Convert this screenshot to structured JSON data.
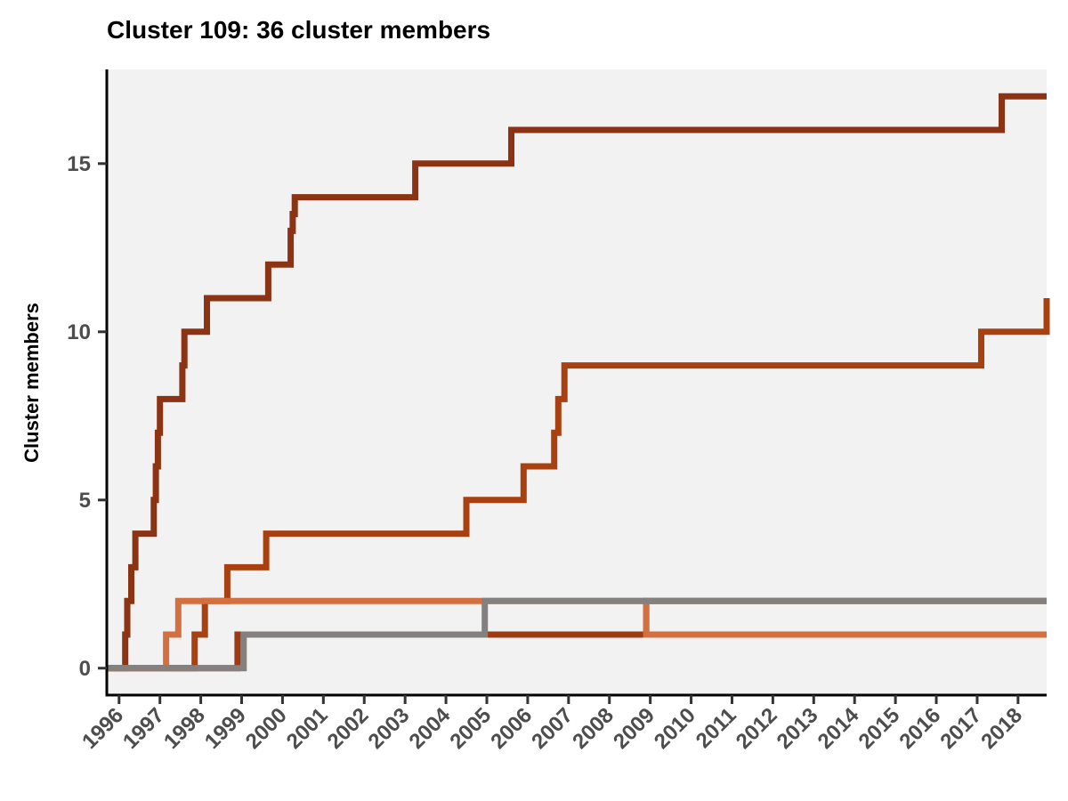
{
  "chart_data": {
    "type": "line",
    "title": "Cluster 109: 36 cluster members",
    "xlabel": "",
    "ylabel": "Cluster members",
    "xlim": [
      1995.7,
      2018.7
    ],
    "ylim": [
      -0.8,
      17.8
    ],
    "x_ticks": [
      "1996",
      "1997",
      "1998",
      "1999",
      "2000",
      "2001",
      "2002",
      "2003",
      "2004",
      "2005",
      "2006",
      "2007",
      "2008",
      "2009",
      "2010",
      "2011",
      "2012",
      "2013",
      "2014",
      "2015",
      "2016",
      "2017",
      "2018"
    ],
    "y_ticks": [
      0,
      5,
      10,
      15
    ],
    "grid": false,
    "legend": "none",
    "step": true,
    "series": [
      {
        "color": "#8b3312",
        "x": [
          1995.7,
          1996.15,
          1996.2,
          1996.3,
          1996.4,
          1996.85,
          1996.9,
          1996.95,
          1997.0,
          1997.55,
          1997.6,
          1998.15,
          1999.65,
          2000.2,
          2000.25,
          2000.3,
          2003.25,
          2005.6,
          2017.6,
          2018.7
        ],
        "y": [
          0,
          1,
          2,
          3,
          4,
          5,
          6,
          7,
          8,
          9,
          10,
          11,
          12,
          13,
          13.5,
          14,
          15,
          16,
          17,
          17
        ]
      },
      {
        "color": "#a84010",
        "x": [
          1995.7,
          1997.6,
          1997.85,
          1998.1,
          1998.65,
          1999.6,
          2004.5,
          2005.9,
          2006.65,
          2006.75,
          2006.9,
          2017.1,
          2018.7
        ],
        "y": [
          0,
          0,
          1,
          2,
          3,
          4,
          5,
          6,
          7,
          8,
          9,
          10,
          11
        ]
      },
      {
        "color": "#9e3a12",
        "x": [
          1995.7,
          1998.4,
          1998.9,
          2005.0,
          2005.4,
          2008.9,
          2018.7
        ],
        "y": [
          0,
          0,
          1,
          1,
          1,
          2,
          2
        ]
      },
      {
        "color": "#d47040",
        "x": [
          1995.7,
          1997.15,
          1997.45,
          2005.0,
          2005.3,
          2008.9,
          2018.7
        ],
        "y": [
          0,
          1,
          2,
          2,
          2,
          1,
          1
        ]
      },
      {
        "color": "#858080",
        "x": [
          1995.7,
          1999.05,
          2004.95,
          2018.7
        ],
        "y": [
          0,
          1,
          2,
          2
        ]
      }
    ]
  }
}
